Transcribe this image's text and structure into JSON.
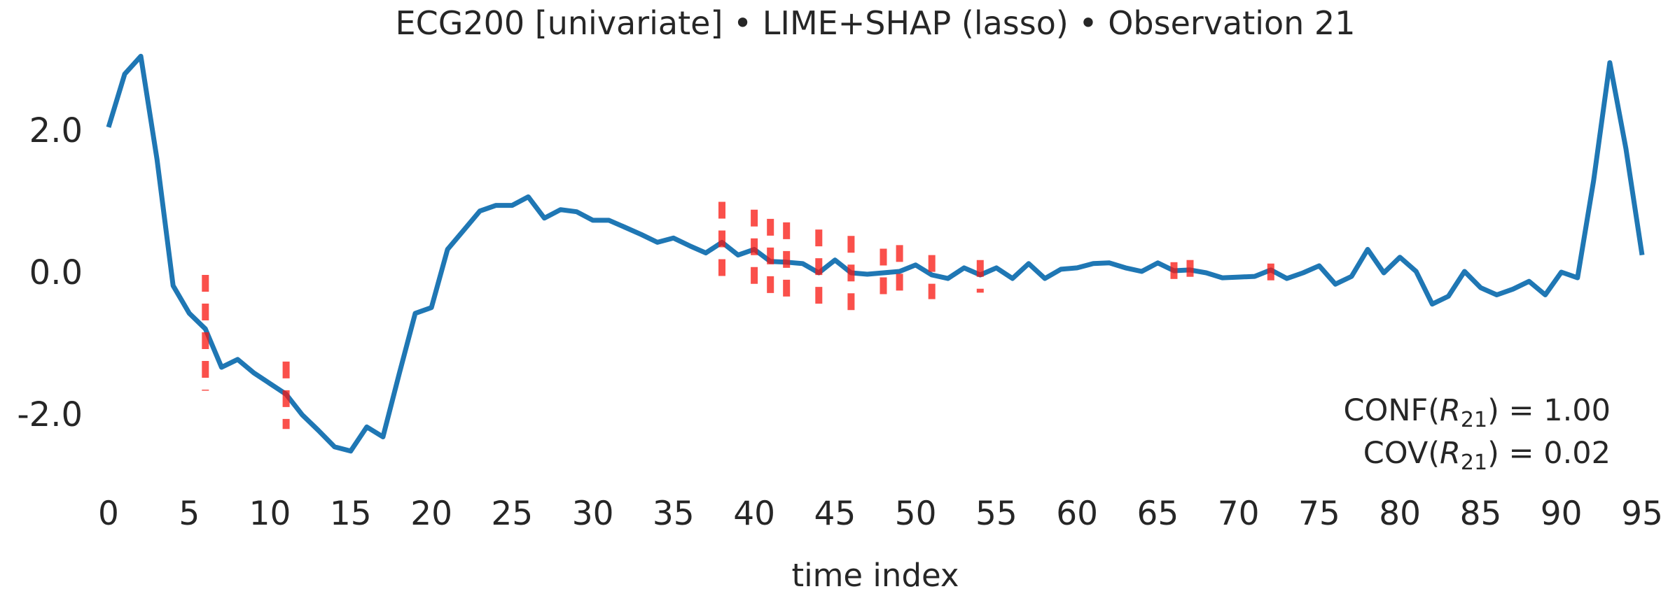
{
  "chart_data": {
    "type": "line",
    "title": "ECG200 [univariate] • LIME+SHAP (lasso) • Observation 21",
    "xlabel": "time index",
    "ylabel": "",
    "legend": "none",
    "grid": false,
    "xlim": [
      -4,
      99
    ],
    "ylim": [
      -3.3,
      3.4
    ],
    "x_ticks": [
      0,
      5,
      10,
      15,
      20,
      25,
      30,
      35,
      40,
      45,
      50,
      55,
      60,
      65,
      70,
      75,
      80,
      85,
      90,
      95
    ],
    "y_ticks": [
      {
        "value": 2.0,
        "label": "2.0"
      },
      {
        "value": 0.0,
        "label": "0.0"
      },
      {
        "value": -2.0,
        "label": "-2.0"
      }
    ],
    "x": [
      0,
      1,
      2,
      3,
      4,
      5,
      6,
      7,
      8,
      9,
      10,
      11,
      12,
      13,
      14,
      15,
      16,
      17,
      18,
      19,
      20,
      21,
      22,
      23,
      24,
      25,
      26,
      27,
      28,
      29,
      30,
      31,
      32,
      33,
      34,
      35,
      36,
      37,
      38,
      39,
      40,
      41,
      42,
      43,
      44,
      45,
      46,
      47,
      48,
      49,
      50,
      51,
      52,
      53,
      54,
      55,
      56,
      57,
      58,
      59,
      60,
      61,
      62,
      63,
      64,
      65,
      66,
      67,
      68,
      69,
      70,
      71,
      72,
      73,
      74,
      75,
      76,
      77,
      78,
      79,
      80,
      81,
      82,
      83,
      84,
      85,
      86,
      87,
      88,
      89,
      90,
      91,
      92,
      93,
      94,
      95
    ],
    "series": [
      {
        "name": "observation 21 time series",
        "color": "#1f77b4",
        "line_width": 7,
        "values": [
          2.05,
          2.8,
          3.05,
          1.6,
          -0.18,
          -0.57,
          -0.79,
          -1.33,
          -1.22,
          -1.41,
          -1.56,
          -1.71,
          -2.0,
          -2.22,
          -2.45,
          -2.51,
          -2.17,
          -2.31,
          -1.43,
          -0.57,
          -0.49,
          0.33,
          0.6,
          0.87,
          0.95,
          0.95,
          1.07,
          0.77,
          0.89,
          0.86,
          0.74,
          0.74,
          0.64,
          0.54,
          0.43,
          0.49,
          0.38,
          0.28,
          0.43,
          0.25,
          0.33,
          0.16,
          0.15,
          0.13,
          0.0,
          0.18,
          0.0,
          -0.02,
          0.0,
          0.02,
          0.11,
          -0.03,
          -0.08,
          0.07,
          -0.03,
          0.07,
          -0.08,
          0.13,
          -0.08,
          0.05,
          0.07,
          0.13,
          0.14,
          0.07,
          0.02,
          0.14,
          0.03,
          0.04,
          0.0,
          -0.07,
          -0.06,
          -0.05,
          0.04,
          -0.08,
          0.0,
          0.1,
          -0.16,
          -0.05,
          0.33,
          0.0,
          0.22,
          0.02,
          -0.44,
          -0.33,
          0.02,
          -0.21,
          -0.31,
          -0.23,
          -0.12,
          -0.31,
          0.01,
          -0.07,
          1.3,
          2.96,
          1.75,
          0.25
        ]
      }
    ],
    "saliency_markers": {
      "name": "explanation saliency intervals (red dashed vertical segments)",
      "color": "#f8160f",
      "opacity": 0.75,
      "line_width": 10,
      "dash": [
        24,
        17
      ],
      "points": [
        {
          "t": 6,
          "v_min": -1.66,
          "v_max": -0.03
        },
        {
          "t": 11,
          "v_min": -2.2,
          "v_max": -1.25
        },
        {
          "t": 38,
          "v_min": -0.15,
          "v_max": 1.0
        },
        {
          "t": 40,
          "v_min": -0.3,
          "v_max": 0.89
        },
        {
          "t": 41,
          "v_min": -0.44,
          "v_max": 0.76
        },
        {
          "t": 42,
          "v_min": -0.49,
          "v_max": 0.71
        },
        {
          "t": 44,
          "v_min": -0.57,
          "v_max": 0.61
        },
        {
          "t": 46,
          "v_min": -0.54,
          "v_max": 0.52
        },
        {
          "t": 48,
          "v_min": -0.39,
          "v_max": 0.34
        },
        {
          "t": 49,
          "v_min": -0.34,
          "v_max": 0.39
        },
        {
          "t": 51,
          "v_min": -0.37,
          "v_max": 0.25
        },
        {
          "t": 54,
          "v_min": -0.28,
          "v_max": 0.18
        },
        {
          "t": 66,
          "v_min": -0.17,
          "v_max": 0.15
        },
        {
          "t": 67,
          "v_min": -0.12,
          "v_max": 0.18
        },
        {
          "t": 72,
          "v_min": -0.17,
          "v_max": 0.13
        }
      ]
    },
    "annotations": [
      {
        "prefix": "CONF(",
        "variable": "R",
        "subscript": "21",
        "suffix": ") = 1.00"
      },
      {
        "prefix": "COV(",
        "variable": "R",
        "subscript": "21",
        "suffix": ") = 0.02"
      }
    ],
    "text_color": "#262626"
  }
}
